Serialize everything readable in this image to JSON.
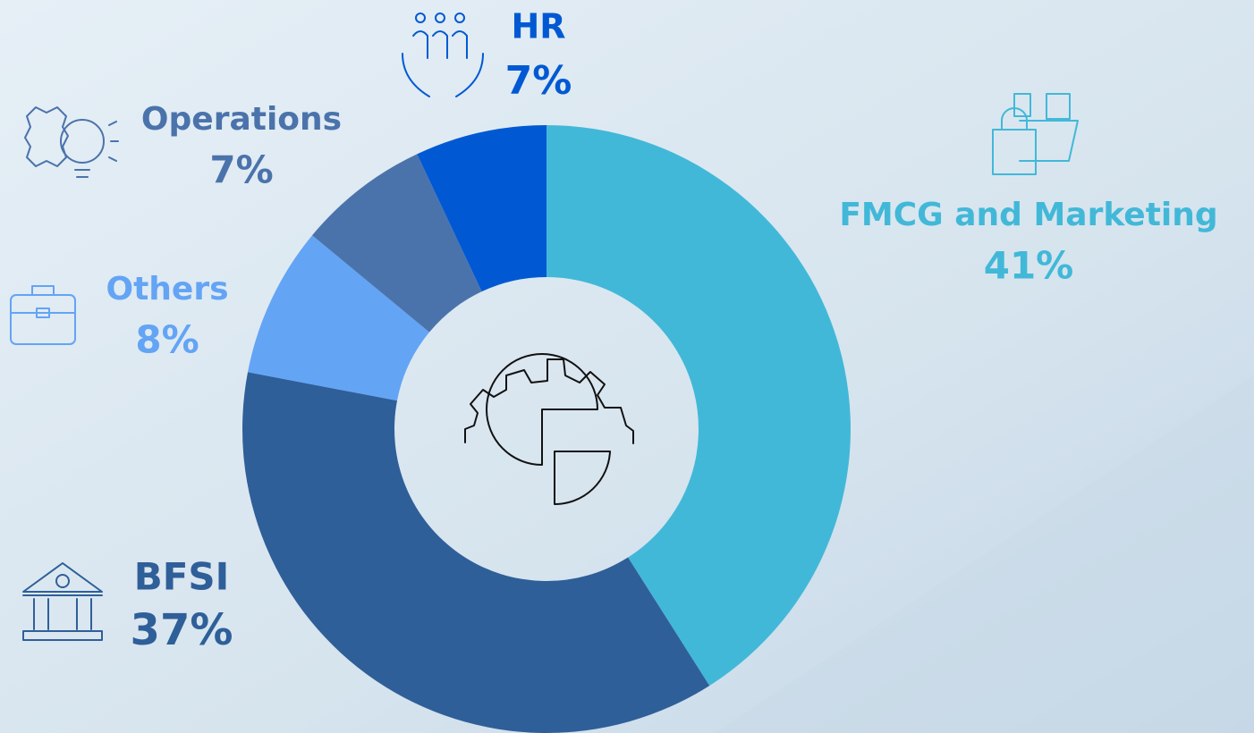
{
  "chart_data": {
    "type": "pie",
    "donut": true,
    "categories": [
      "FMCG and Marketing",
      "BFSI",
      "Others",
      "Operations",
      "HR"
    ],
    "values": [
      41,
      37,
      8,
      7,
      7
    ],
    "value_labels": [
      "41%",
      "37%",
      "8%",
      "7%",
      "7%"
    ],
    "colors": [
      "#42b8d8",
      "#2f5f99",
      "#63a4f5",
      "#4b73ab",
      "#0059d3"
    ]
  }
}
